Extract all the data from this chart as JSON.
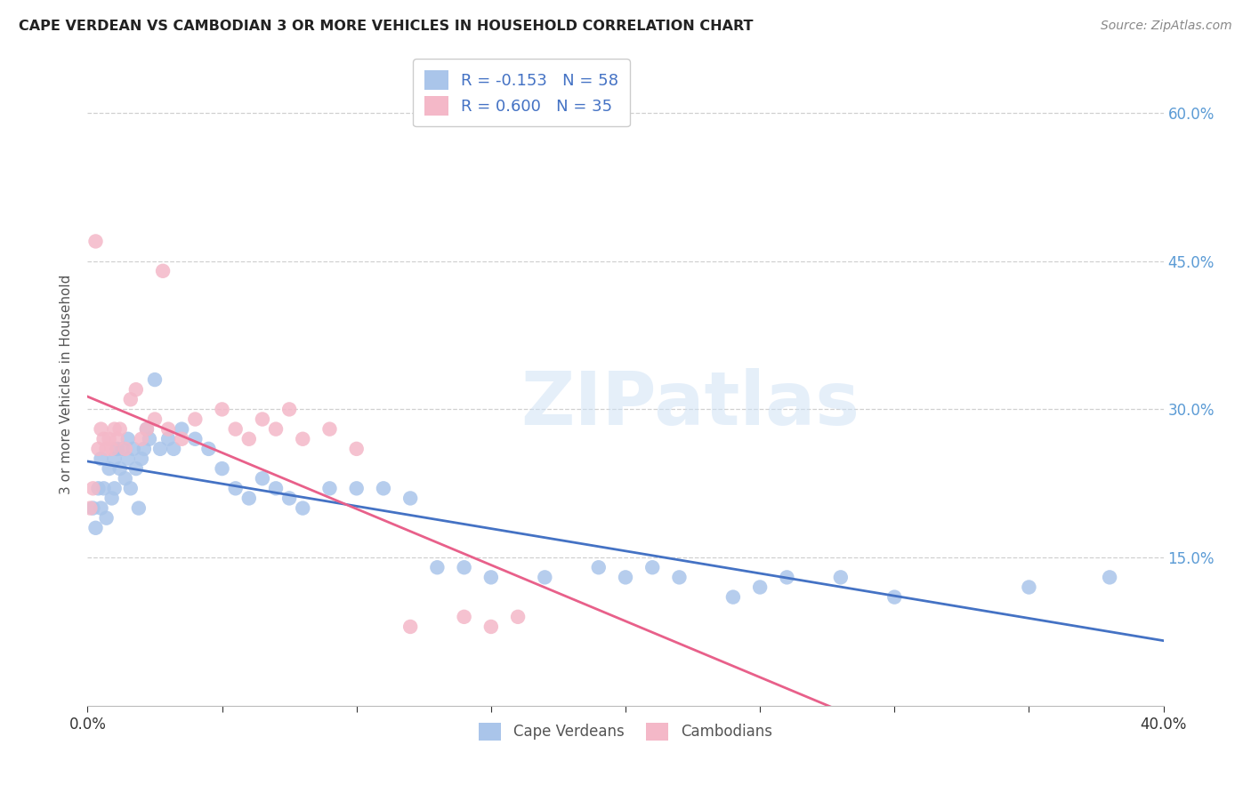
{
  "title": "CAPE VERDEAN VS CAMBODIAN 3 OR MORE VEHICLES IN HOUSEHOLD CORRELATION CHART",
  "source": "Source: ZipAtlas.com",
  "ylabel": "3 or more Vehicles in Household",
  "watermark": "ZIPatlas",
  "blue_label": "Cape Verdeans",
  "pink_label": "Cambodians",
  "blue_R": -0.153,
  "blue_N": 58,
  "pink_R": 0.6,
  "pink_N": 35,
  "xlim": [
    0.0,
    40.0
  ],
  "ylim": [
    0.0,
    65.0
  ],
  "yticks": [
    15.0,
    30.0,
    45.0,
    60.0
  ],
  "blue_dot_color": "#aac5ea",
  "blue_line_color": "#4472c4",
  "pink_dot_color": "#f4b8c8",
  "pink_line_color": "#e8608a",
  "legend_text_color": "#4472c4",
  "title_color": "#222222",
  "source_color": "#888888",
  "grid_color": "#d0d0d0",
  "right_tick_color": "#5b9bd5",
  "blue_x": [
    0.2,
    0.3,
    0.4,
    0.5,
    0.5,
    0.6,
    0.7,
    0.8,
    0.9,
    1.0,
    1.0,
    1.1,
    1.2,
    1.3,
    1.4,
    1.5,
    1.5,
    1.6,
    1.7,
    1.8,
    1.9,
    2.0,
    2.1,
    2.2,
    2.3,
    2.5,
    2.7,
    3.0,
    3.2,
    3.5,
    4.0,
    4.5,
    5.0,
    5.5,
    6.0,
    6.5,
    7.0,
    7.5,
    8.0,
    9.0,
    10.0,
    11.0,
    12.0,
    13.0,
    14.0,
    15.0,
    17.0,
    19.0,
    20.0,
    21.0,
    22.0,
    24.0,
    25.0,
    26.0,
    28.0,
    30.0,
    35.0,
    38.0
  ],
  "blue_y": [
    20.0,
    18.0,
    22.0,
    20.0,
    25.0,
    22.0,
    19.0,
    24.0,
    21.0,
    25.0,
    22.0,
    26.0,
    24.0,
    26.0,
    23.0,
    25.0,
    27.0,
    22.0,
    26.0,
    24.0,
    20.0,
    25.0,
    26.0,
    28.0,
    27.0,
    33.0,
    26.0,
    27.0,
    26.0,
    28.0,
    27.0,
    26.0,
    24.0,
    22.0,
    21.0,
    23.0,
    22.0,
    21.0,
    20.0,
    22.0,
    22.0,
    22.0,
    21.0,
    14.0,
    14.0,
    13.0,
    13.0,
    14.0,
    13.0,
    14.0,
    13.0,
    11.0,
    12.0,
    13.0,
    13.0,
    11.0,
    12.0,
    13.0
  ],
  "pink_x": [
    0.1,
    0.2,
    0.3,
    0.4,
    0.5,
    0.6,
    0.7,
    0.8,
    0.9,
    1.0,
    1.1,
    1.2,
    1.4,
    1.6,
    1.8,
    2.0,
    2.2,
    2.5,
    2.8,
    3.0,
    3.5,
    4.0,
    5.0,
    5.5,
    6.0,
    6.5,
    7.0,
    7.5,
    8.0,
    9.0,
    10.0,
    12.0,
    14.0,
    15.0,
    16.0
  ],
  "pink_y": [
    20.0,
    22.0,
    47.0,
    26.0,
    28.0,
    27.0,
    26.0,
    27.0,
    26.0,
    28.0,
    27.0,
    28.0,
    26.0,
    31.0,
    32.0,
    27.0,
    28.0,
    29.0,
    44.0,
    28.0,
    27.0,
    29.0,
    30.0,
    28.0,
    27.0,
    29.0,
    28.0,
    30.0,
    27.0,
    28.0,
    26.0,
    8.0,
    9.0,
    8.0,
    9.0
  ]
}
